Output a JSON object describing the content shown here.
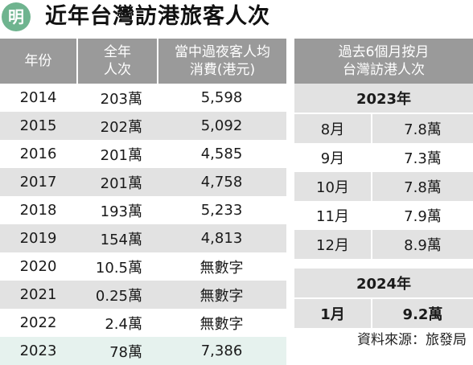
{
  "header": {
    "logo_char": "明",
    "title": "近年台灣訪港旅客人次"
  },
  "annual_table": {
    "headers": [
      [
        "年份"
      ],
      [
        "全年",
        "人次"
      ],
      [
        "當中過夜客人均",
        "消費(港元)"
      ]
    ],
    "rows": [
      {
        "year": "2014",
        "visitors": "203萬",
        "spending": "5,598"
      },
      {
        "year": "2015",
        "visitors": "202萬",
        "spending": "5,092"
      },
      {
        "year": "2016",
        "visitors": "201萬",
        "spending": "4,585"
      },
      {
        "year": "2017",
        "visitors": "201萬",
        "spending": "4,758"
      },
      {
        "year": "2018",
        "visitors": "193萬",
        "spending": "5,233"
      },
      {
        "year": "2019",
        "visitors": "154萬",
        "spending": "4,813"
      },
      {
        "year": "2020",
        "visitors": "10.5萬",
        "spending": "無數字"
      },
      {
        "year": "2021",
        "visitors": "0.25萬",
        "spending": "無數字"
      },
      {
        "year": "2022",
        "visitors": "2.4萬",
        "spending": "無數字"
      },
      {
        "year": "2023",
        "visitors": "78萬",
        "spending": "7,386"
      }
    ]
  },
  "monthly_panel": {
    "header_lines": [
      "過去6個月按月",
      "台灣訪港人次"
    ],
    "year_2023": "2023年",
    "months_2023": [
      {
        "month": "8月",
        "value": "7.8萬"
      },
      {
        "month": "9月",
        "value": "7.3萬"
      },
      {
        "month": "10月",
        "value": "7.8萬"
      },
      {
        "month": "11月",
        "value": "7.9萬"
      },
      {
        "month": "12月",
        "value": "8.9萬"
      }
    ],
    "year_2024": "2024年",
    "months_2024": [
      {
        "month": "1月",
        "value": "9.2萬"
      }
    ]
  },
  "source": "資料來源：旅發局"
}
